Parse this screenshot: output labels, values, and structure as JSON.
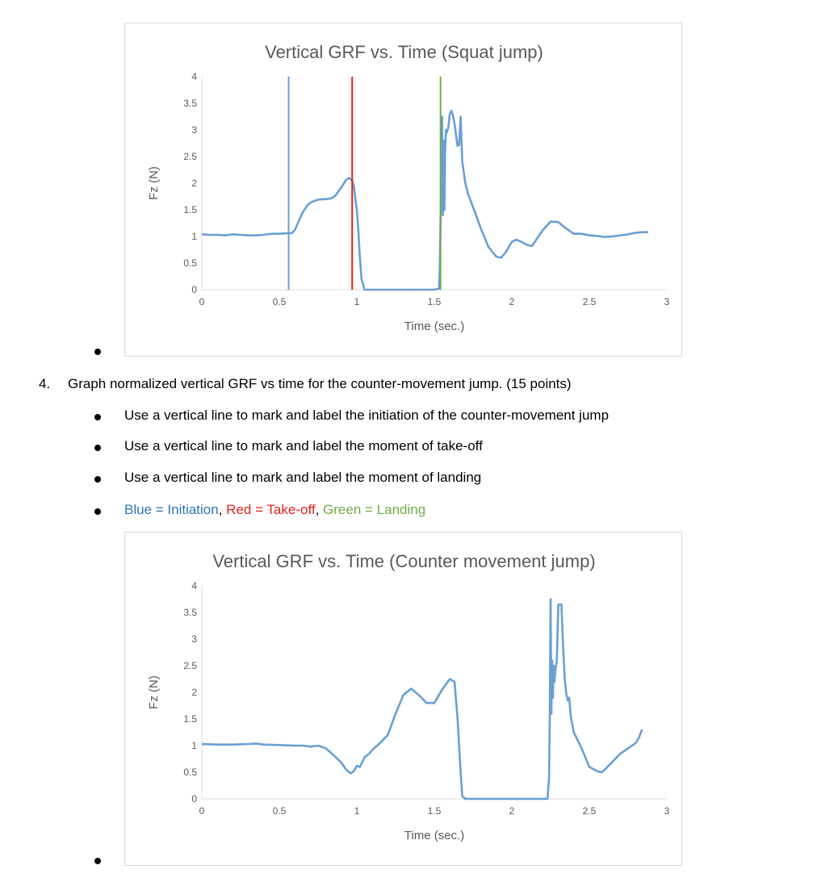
{
  "question": {
    "number": "4.",
    "text": "Graph normalized vertical GRF vs time for the counter-movement jump. (15 points)",
    "bullets": [
      "Use a vertical line to mark and label the initiation of the counter-movement jump",
      "Use a vertical line to mark and label the moment of take-off",
      "Use a vertical line to mark and label the moment of landing"
    ],
    "legend": {
      "blue": "Blue = Initiation",
      "red": "Red = Take-off",
      "green": "Green = Landing",
      "sep1": ", ",
      "sep2": ", "
    }
  },
  "chart_data": [
    {
      "type": "line",
      "title": "Vertical GRF vs. Time (Squat jump)",
      "xlabel": "Time (sec.)",
      "ylabel": "Fz (N)",
      "xlim": [
        0,
        3
      ],
      "ylim": [
        0,
        4
      ],
      "xticks": [
        "0",
        "0.5",
        "1",
        "1.5",
        "2",
        "2.5",
        "3"
      ],
      "yticks": [
        "0",
        "0.5",
        "1",
        "1.5",
        "2",
        "2.5",
        "3",
        "3.5",
        "4"
      ],
      "grid": false,
      "line_color": "#6a9fd4",
      "x": [
        0,
        0.05,
        0.1,
        0.15,
        0.2,
        0.25,
        0.3,
        0.35,
        0.4,
        0.45,
        0.5,
        0.55,
        0.58,
        0.6,
        0.62,
        0.65,
        0.68,
        0.7,
        0.72,
        0.75,
        0.78,
        0.8,
        0.83,
        0.86,
        0.9,
        0.93,
        0.95,
        0.97,
        0.98,
        1.0,
        1.01,
        1.02,
        1.03,
        1.05,
        1.1,
        1.2,
        1.3,
        1.4,
        1.5,
        1.53,
        1.535,
        1.54,
        1.545,
        1.55,
        1.555,
        1.56,
        1.565,
        1.57,
        1.575,
        1.58,
        1.59,
        1.6,
        1.61,
        1.62,
        1.63,
        1.64,
        1.65,
        1.66,
        1.67,
        1.68,
        1.69,
        1.7,
        1.72,
        1.75,
        1.8,
        1.85,
        1.9,
        1.93,
        1.96,
        2.0,
        2.03,
        2.06,
        2.1,
        2.13,
        2.16,
        2.2,
        2.25,
        2.3,
        2.35,
        2.4,
        2.45,
        2.5,
        2.55,
        2.6,
        2.65,
        2.7,
        2.75,
        2.8,
        2.85,
        2.88
      ],
      "y": [
        1.04,
        1.03,
        1.03,
        1.02,
        1.04,
        1.03,
        1.02,
        1.02,
        1.03,
        1.05,
        1.05,
        1.06,
        1.06,
        1.12,
        1.25,
        1.45,
        1.58,
        1.63,
        1.66,
        1.69,
        1.7,
        1.7,
        1.71,
        1.76,
        1.92,
        2.06,
        2.1,
        2.05,
        1.95,
        1.5,
        1.1,
        0.6,
        0.2,
        0.0,
        0.0,
        0.0,
        0.0,
        0.0,
        0.0,
        0.02,
        0.4,
        1.3,
        2.0,
        3.25,
        1.4,
        2.8,
        1.5,
        2.6,
        3.0,
        2.95,
        3.05,
        3.3,
        3.36,
        3.28,
        3.12,
        2.9,
        2.7,
        2.72,
        3.25,
        2.4,
        2.2,
        2.0,
        1.78,
        1.55,
        1.15,
        0.8,
        0.62,
        0.6,
        0.7,
        0.9,
        0.94,
        0.9,
        0.84,
        0.82,
        0.95,
        1.12,
        1.28,
        1.27,
        1.15,
        1.05,
        1.05,
        1.02,
        1.01,
        0.99,
        1.0,
        1.02,
        1.04,
        1.07,
        1.08,
        1.08
      ],
      "markers": [
        {
          "label": "Initiation",
          "x": 0.56,
          "color": "#6a9fd4"
        },
        {
          "label": "Take-off",
          "x": 0.97,
          "color": "#e2231a"
        },
        {
          "label": "Landing",
          "x": 1.54,
          "color": "#70ad47"
        }
      ]
    },
    {
      "type": "line",
      "title": "Vertical GRF vs. Time (Counter movement jump)",
      "xlabel": "Time (sec.)",
      "ylabel": "Fz (N)",
      "xlim": [
        0,
        3
      ],
      "ylim": [
        0,
        4
      ],
      "xticks": [
        "0",
        "0.5",
        "1",
        "1.5",
        "2",
        "2.5",
        "3"
      ],
      "yticks": [
        "0",
        "0.5",
        "1",
        "1.5",
        "2",
        "2.5",
        "3",
        "3.5",
        "4"
      ],
      "grid": false,
      "line_color": "#6a9fd4",
      "x": [
        0,
        0.1,
        0.2,
        0.3,
        0.35,
        0.4,
        0.5,
        0.6,
        0.65,
        0.7,
        0.75,
        0.8,
        0.85,
        0.9,
        0.93,
        0.96,
        0.98,
        1.0,
        1.02,
        1.05,
        1.08,
        1.1,
        1.15,
        1.2,
        1.25,
        1.3,
        1.35,
        1.4,
        1.45,
        1.5,
        1.55,
        1.6,
        1.63,
        1.65,
        1.67,
        1.68,
        1.7,
        1.8,
        1.9,
        2.0,
        2.1,
        2.2,
        2.23,
        2.24,
        2.245,
        2.25,
        2.255,
        2.26,
        2.265,
        2.27,
        2.275,
        2.28,
        2.29,
        2.3,
        2.31,
        2.32,
        2.33,
        2.34,
        2.35,
        2.36,
        2.37,
        2.38,
        2.4,
        2.45,
        2.5,
        2.55,
        2.58,
        2.6,
        2.65,
        2.7,
        2.75,
        2.8,
        2.82,
        2.84
      ],
      "y": [
        1.03,
        1.02,
        1.02,
        1.03,
        1.04,
        1.02,
        1.01,
        1.0,
        1.0,
        0.98,
        1.0,
        0.95,
        0.82,
        0.68,
        0.55,
        0.48,
        0.52,
        0.62,
        0.6,
        0.78,
        0.85,
        0.92,
        1.05,
        1.2,
        1.6,
        1.95,
        2.07,
        1.95,
        1.8,
        1.8,
        2.05,
        2.25,
        2.2,
        1.5,
        0.5,
        0.05,
        0.0,
        0.0,
        0.0,
        0.0,
        0.0,
        0.0,
        0.0,
        0.4,
        1.5,
        3.75,
        1.6,
        2.6,
        1.9,
        2.5,
        2.2,
        2.4,
        2.6,
        3.65,
        3.65,
        3.65,
        2.9,
        2.3,
        2.0,
        1.85,
        1.9,
        1.55,
        1.25,
        0.95,
        0.6,
        0.52,
        0.5,
        0.55,
        0.7,
        0.85,
        0.95,
        1.05,
        1.15,
        1.3
      ],
      "markers": []
    }
  ]
}
